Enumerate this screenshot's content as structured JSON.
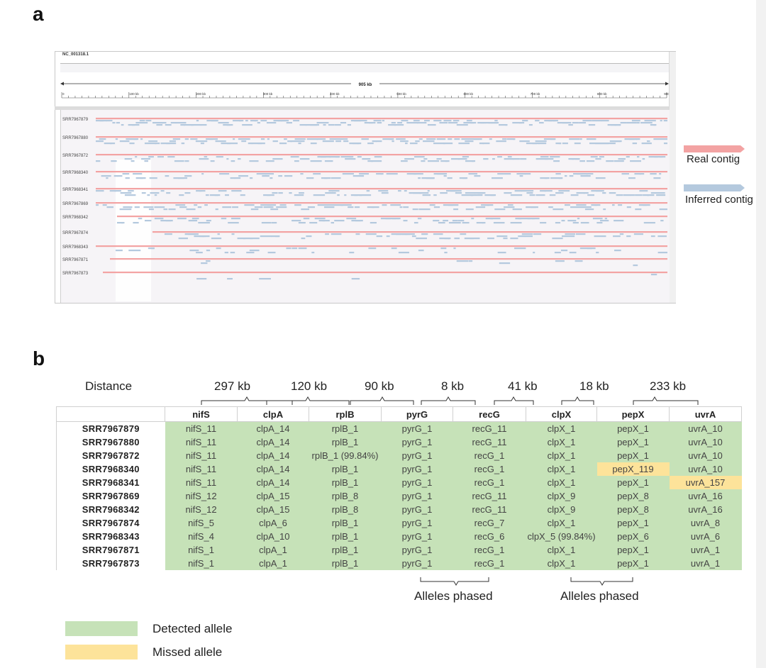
{
  "panel_a": {
    "letter": "a",
    "reference_id": "NC_001318.1",
    "ruler_span": "905 kb",
    "ruler_ticks": [
      "0",
      "100 kb",
      "200 kb",
      "300 kb",
      "400 kb",
      "500 kb",
      "600 kb",
      "700 kb",
      "800 kb",
      "900 k"
    ],
    "samples": [
      "SRR7967879",
      "SRR7967880",
      "SRR7967872",
      "SRR7968340",
      "SRR7968341",
      "SRR7967869",
      "SRR7968342",
      "SRR7967874",
      "SRR7968343",
      "SRR7967871",
      "SRR7967873"
    ],
    "legend": {
      "real": "Real contig",
      "inferred": "Inferred contig",
      "real_color": "#f3a3a3",
      "inferred_color": "#b4c9de"
    }
  },
  "panel_b": {
    "letter": "b",
    "distance_label": "Distance",
    "distances": [
      "297 kb",
      "120 kb",
      "90 kb",
      "8 kb",
      "41 kb",
      "18 kb",
      "233 kb"
    ],
    "genes": [
      "nifS",
      "clpA",
      "rplB",
      "pyrG",
      "recG",
      "clpX",
      "pepX",
      "uvrA"
    ],
    "rows": [
      {
        "sample": "SRR7967879",
        "alleles": [
          "nifS_11",
          "clpA_14",
          "rplB_1",
          "pyrG_1",
          "recG_11",
          "clpX_1",
          "pepX_1",
          "uvrA_10"
        ]
      },
      {
        "sample": "SRR7967880",
        "alleles": [
          "nifS_11",
          "clpA_14",
          "rplB_1",
          "pyrG_1",
          "recG_11",
          "clpX_1",
          "pepX_1",
          "uvrA_10"
        ]
      },
      {
        "sample": "SRR7967872",
        "alleles": [
          "nifS_11",
          "clpA_14",
          "rplB_1 (99.84%)",
          "pyrG_1",
          "recG_1",
          "clpX_1",
          "pepX_1",
          "uvrA_10"
        ]
      },
      {
        "sample": "SRR7968340",
        "alleles": [
          "nifS_11",
          "clpA_14",
          "rplB_1",
          "pyrG_1",
          "recG_1",
          "clpX_1",
          "pepX_119",
          "uvrA_10"
        ]
      },
      {
        "sample": "SRR7968341",
        "alleles": [
          "nifS_11",
          "clpA_14",
          "rplB_1",
          "pyrG_1",
          "recG_1",
          "clpX_1",
          "pepX_1",
          "uvrA_157"
        ]
      },
      {
        "sample": "SRR7967869",
        "alleles": [
          "nifS_12",
          "clpA_15",
          "rplB_8",
          "pyrG_1",
          "recG_11",
          "clpX_9",
          "pepX_8",
          "uvrA_16"
        ]
      },
      {
        "sample": "SRR7968342",
        "alleles": [
          "nifS_12",
          "clpA_15",
          "rplB_8",
          "pyrG_1",
          "recG_11",
          "clpX_9",
          "pepX_8",
          "uvrA_16"
        ]
      },
      {
        "sample": "SRR7967874",
        "alleles": [
          "nifS_5",
          "clpA_6",
          "rplB_1",
          "pyrG_1",
          "recG_7",
          "clpX_1",
          "pepX_1",
          "uvrA_8"
        ]
      },
      {
        "sample": "SRR7968343",
        "alleles": [
          "nifS_4",
          "clpA_10",
          "rplB_1",
          "pyrG_1",
          "recG_6",
          "clpX_5 (99.84%)",
          "pepX_6",
          "uvrA_6"
        ]
      },
      {
        "sample": "SRR7967871",
        "alleles": [
          "nifS_1",
          "clpA_1",
          "rplB_1",
          "pyrG_1",
          "recG_1",
          "clpX_1",
          "pepX_1",
          "uvrA_1"
        ]
      },
      {
        "sample": "SRR7967873",
        "alleles": [
          "nifS_1",
          "clpA_1",
          "rplB_1",
          "pyrG_1",
          "recG_1",
          "clpX_1",
          "pepX_1",
          "uvrA_1"
        ]
      }
    ],
    "missed_cells": [
      [
        "SRR7968340",
        "pepX"
      ],
      [
        "SRR7968341",
        "uvrA"
      ]
    ],
    "phased_label": "Alleles phased",
    "legend": {
      "detected": "Detected allele",
      "missed": "Missed allele",
      "detected_color": "#c6e2b8",
      "missed_color": "#fde39a"
    }
  }
}
